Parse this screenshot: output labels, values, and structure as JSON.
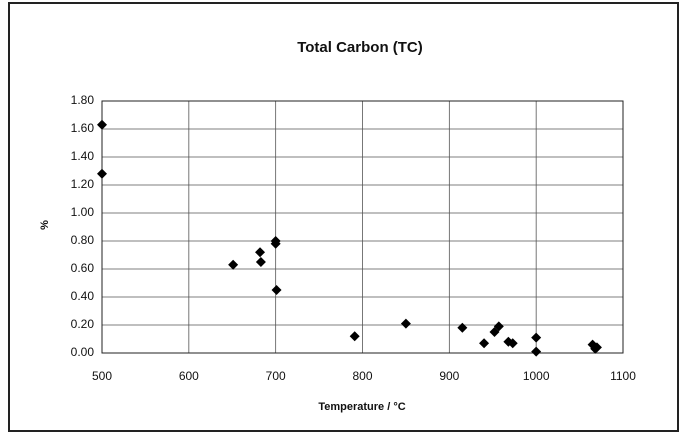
{
  "chart_data": {
    "type": "scatter",
    "title": "Total  Carbon  (TC)",
    "x_label": "Temperature  /  °C",
    "y_label": "%",
    "color": "#000000",
    "grid": true,
    "series": [
      {
        "name": "TC",
        "x": [
          500,
          500,
          651,
          682,
          683,
          700,
          700,
          701,
          791,
          850,
          915,
          940,
          952,
          957,
          968,
          973,
          1000,
          1000,
          1065,
          1068,
          1070
        ],
        "values": [
          1.63,
          1.28,
          0.63,
          0.72,
          0.65,
          0.8,
          0.78,
          0.45,
          0.12,
          0.21,
          0.18,
          0.07,
          0.15,
          0.19,
          0.08,
          0.07,
          0.11,
          0.01,
          0.06,
          0.03,
          0.04
        ]
      }
    ],
    "xlim": [
      500,
      1100
    ],
    "xticks": [
      500,
      600,
      700,
      800,
      900,
      1000,
      1100
    ],
    "ylim": [
      0,
      1.8
    ],
    "yticks": [
      {
        "value": 0,
        "label": "0.00"
      },
      {
        "value": 0.2,
        "label": "0.20"
      },
      {
        "value": 0.4,
        "label": "0.40"
      },
      {
        "value": 0.6,
        "label": "0.60"
      },
      {
        "value": 0.8,
        "label": "0.80"
      },
      {
        "value": 1.0,
        "label": "1.00"
      },
      {
        "value": 1.2,
        "label": "1.20"
      },
      {
        "value": 1.4,
        "label": "1.40"
      },
      {
        "value": 1.6,
        "label": "1.60"
      },
      {
        "value": 1.8,
        "label": "1.80"
      }
    ]
  }
}
